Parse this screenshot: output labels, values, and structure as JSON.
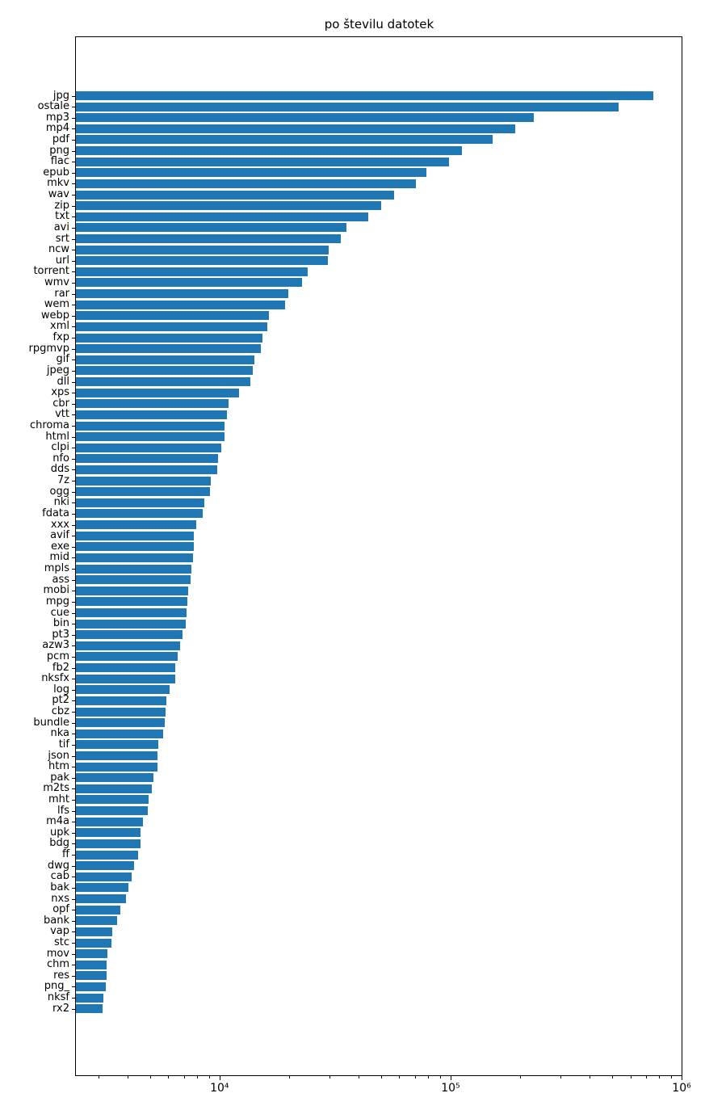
{
  "chart_data": {
    "type": "bar",
    "orientation": "horizontal",
    "title": "po številu datotek",
    "xscale": "log",
    "xlim": [
      2390,
      1000000
    ],
    "grid": false,
    "legend": null,
    "bar_color": "#1f77b4",
    "x_tick_values": [
      10000,
      100000,
      1000000
    ],
    "x_tick_labels": [
      "10⁴",
      "10⁵",
      "10⁶"
    ],
    "categories": [
      "jpg",
      "ostale",
      "mp3",
      "mp4",
      "pdf",
      "png",
      "flac",
      "epub",
      "mkv",
      "wav",
      "zip",
      "txt",
      "avi",
      "srt",
      "ncw",
      "url",
      "torrent",
      "wmv",
      "rar",
      "wem",
      "webp",
      "xml",
      "fxp",
      "rpgmvp",
      "gif",
      "jpeg",
      "dll",
      "xps",
      "cbr",
      "vtt",
      "chroma",
      "html",
      "clpi",
      "nfo",
      "dds",
      "7z",
      "ogg",
      "nki",
      "fdata",
      "xxx",
      "avif",
      "exe",
      "mid",
      "mpls",
      "ass",
      "mobi",
      "mpg",
      "cue",
      "bin",
      "pt3",
      "azw3",
      "pcm",
      "fb2",
      "nksfx",
      "log",
      "pt2",
      "cbz",
      "bundle",
      "nka",
      "tif",
      "json",
      "htm",
      "pak",
      "m2ts",
      "mht",
      "lfs",
      "m4a",
      "upk",
      "bdg",
      "ff",
      "dwg",
      "cab",
      "bak",
      "nxs",
      "opf",
      "bank",
      "vap",
      "stc",
      "mov",
      "chm",
      "res",
      "png_",
      "nksf",
      "rx2"
    ],
    "values": [
      757000,
      535000,
      230000,
      191000,
      152000,
      112000,
      98600,
      78800,
      70600,
      56900,
      50100,
      43900,
      35300,
      33600,
      29700,
      29400,
      24000,
      22700,
      19900,
      19200,
      16400,
      16100,
      15300,
      15050,
      14200,
      13900,
      13600,
      12100,
      10900,
      10750,
      10550,
      10470,
      10150,
      9840,
      9760,
      9180,
      9060,
      8610,
      8470,
      7930,
      7750,
      7720,
      7690,
      7550,
      7500,
      7310,
      7250,
      7180,
      7160,
      6930,
      6750,
      6600,
      6450,
      6430,
      6100,
      5880,
      5850,
      5800,
      5715,
      5440,
      5390,
      5370,
      5190,
      5100,
      4940,
      4900,
      4670,
      4560,
      4545,
      4435,
      4270,
      4170,
      4020,
      3940,
      3730,
      3610,
      3440,
      3410,
      3270,
      3250,
      3235,
      3230,
      3145,
      3125
    ]
  }
}
